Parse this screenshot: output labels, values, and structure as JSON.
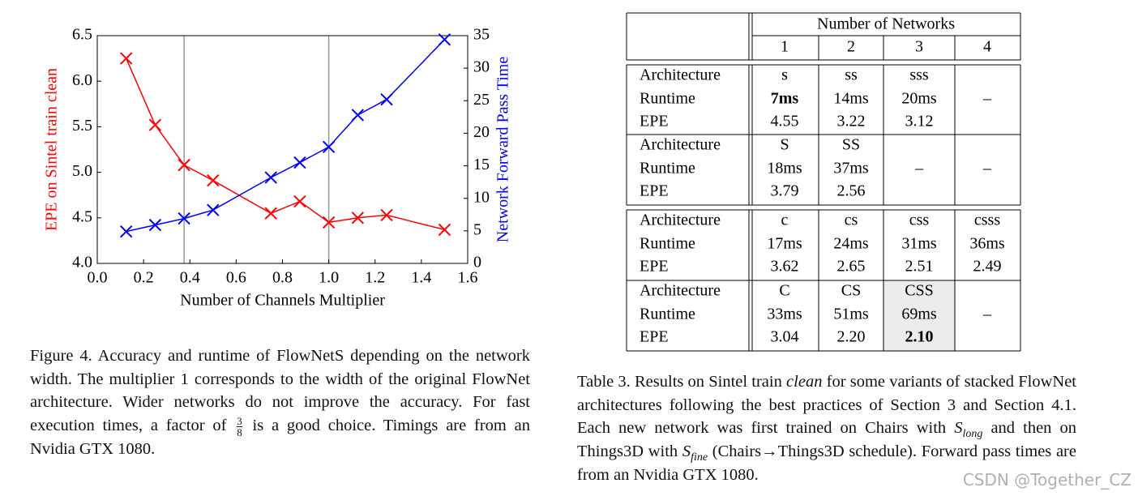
{
  "chart_data": {
    "type": "line",
    "x_label": "Number of Channels Multiplier",
    "y_label": "EPE on Sintel train clean",
    "y2_label": "Network Forward Pass Time",
    "x": [
      0.125,
      0.25,
      0.375,
      0.5,
      0.75,
      0.875,
      1.0,
      1.125,
      1.25,
      1.5
    ],
    "series": [
      {
        "name": "EPE",
        "color": "#ff0000",
        "marker": "x",
        "values": [
          6.25,
          5.52,
          5.08,
          4.91,
          4.55,
          4.68,
          4.45,
          4.5,
          4.53,
          4.37
        ]
      },
      {
        "name": "Runtime",
        "color": "#0000ff",
        "marker": "x",
        "axis": "y2",
        "values": [
          4.9,
          5.9,
          6.9,
          8.2,
          13.2,
          15.5,
          17.9,
          22.8,
          25.2,
          34.4
        ]
      }
    ],
    "xlim": [
      0,
      1.6
    ],
    "xticks": [
      {
        "value": 0,
        "label": "0.0"
      },
      {
        "value": 0.2,
        "label": "0.2"
      },
      {
        "value": 0.4,
        "label": "0.4"
      },
      {
        "value": 0.6,
        "label": "0.6"
      },
      {
        "value": 0.8,
        "label": "0.8"
      },
      {
        "value": 1.0,
        "label": "1.0"
      },
      {
        "value": 1.2,
        "label": "1.2"
      },
      {
        "value": 1.4,
        "label": "1.4"
      },
      {
        "value": 1.6,
        "label": "1.6"
      }
    ],
    "ylim": [
      4.0,
      6.5
    ],
    "yticks": [
      {
        "value": 4.0,
        "label": "4.0"
      },
      {
        "value": 4.5,
        "label": "4.5"
      },
      {
        "value": 5.0,
        "label": "5.0"
      },
      {
        "value": 5.5,
        "label": "5.5"
      },
      {
        "value": 6.0,
        "label": "6.0"
      },
      {
        "value": 6.5,
        "label": "6.5"
      }
    ],
    "y2lim": [
      0,
      35
    ],
    "y2ticks": [
      0,
      5,
      10,
      15,
      20,
      25,
      30,
      35
    ],
    "vlines": [
      0.375,
      1.0
    ],
    "grid": false
  },
  "figure_caption": {
    "before": "Figure 4. Accuracy and runtime of FlowNetS depending on the network width. The multiplier 1 corresponds to the width of the original FlowNet architecture. Wider networks do not improve the accuracy. For fast execution times, a factor of",
    "numerator": "3",
    "denominator": "8",
    "after": "is a good choice. Timings are from an Nvidia GTX 1080."
  },
  "table": {
    "header": "Number of Networks",
    "columns": [
      "1",
      "2",
      "3",
      "4"
    ],
    "labels": [
      "Architecture",
      "Runtime",
      "EPE"
    ],
    "groups": [
      {
        "cells": [
          [
            "s",
            "7ms",
            "4.55"
          ],
          [
            "ss",
            "14ms",
            "3.22"
          ],
          [
            "sss",
            "20ms",
            "3.12"
          ],
          [
            "–"
          ]
        ],
        "bold": [
          [
            0,
            1
          ]
        ]
      },
      {
        "cells": [
          [
            "S",
            "18ms",
            "3.79"
          ],
          [
            "SS",
            "37ms",
            "2.56"
          ],
          [
            "–"
          ],
          [
            "–"
          ]
        ],
        "bold": []
      },
      {
        "cells": [
          [
            "c",
            "17ms",
            "3.62"
          ],
          [
            "cs",
            "24ms",
            "2.65"
          ],
          [
            "css",
            "31ms",
            "2.51"
          ],
          [
            "csss",
            "36ms",
            "2.49"
          ]
        ],
        "bold": []
      },
      {
        "cells": [
          [
            "C",
            "33ms",
            "3.04"
          ],
          [
            "CS",
            "51ms",
            "2.20"
          ],
          [
            "CSS",
            "69ms",
            "2.10"
          ],
          [
            "–"
          ]
        ],
        "bold": [
          [
            2,
            2
          ]
        ],
        "shaded": 2
      }
    ]
  },
  "table_caption": {
    "segments": [
      {
        "text": "Table 3. Results on Sintel train ",
        "style": "normal"
      },
      {
        "text": "clean",
        "style": "italic"
      },
      {
        "text": " for some variants of stacked FlowNet architectures following the best practices of Section 3 and Section 4.1. Each new network was first trained on Chairs with ",
        "style": "normal"
      },
      {
        "text": "S",
        "style": "italic"
      },
      {
        "text": "long",
        "style": "italic-sub"
      },
      {
        "text": " and then on Things3D with ",
        "style": "normal"
      },
      {
        "text": "S",
        "style": "italic"
      },
      {
        "text": "fine",
        "style": "italic-sub"
      },
      {
        "text": " (Chairs→Things3D schedule). Forward pass times are from an Nvidia GTX 1080.",
        "style": "normal"
      }
    ]
  },
  "watermark": "CSDN @Together_CZ"
}
